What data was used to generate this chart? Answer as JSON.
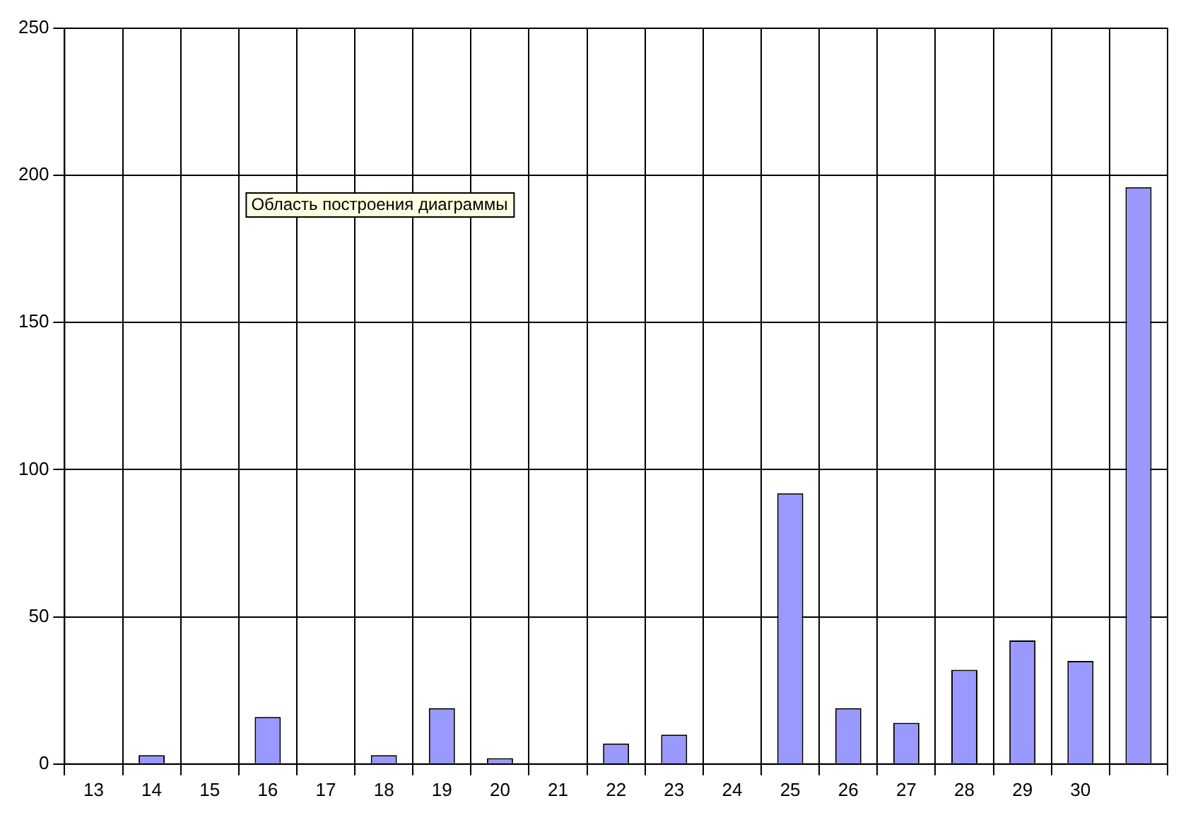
{
  "chart_data": {
    "type": "bar",
    "categories": [
      "13",
      "14",
      "15",
      "16",
      "17",
      "18",
      "19",
      "20",
      "21",
      "22",
      "23",
      "24",
      "25",
      "26",
      "27",
      "28",
      "29",
      "30",
      null
    ],
    "values": [
      0,
      3,
      0,
      16,
      0,
      3,
      19,
      2,
      0,
      7,
      10,
      0,
      92,
      19,
      14,
      32,
      42,
      35,
      196
    ],
    "color": "#9999ff",
    "ylim": [
      0,
      250
    ],
    "yticks": [
      0,
      50,
      100,
      150,
      200,
      250
    ],
    "grid": true,
    "legend": false,
    "annotations": [
      "Область построения диаграммы"
    ]
  }
}
